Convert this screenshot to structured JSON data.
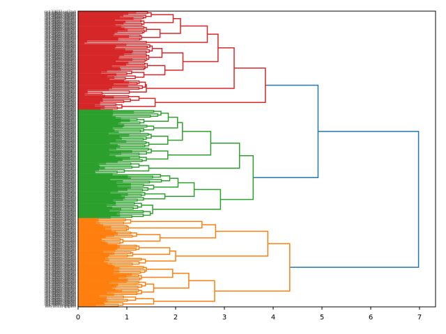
{
  "chart_data": {
    "type": "dendrogram",
    "orientation": "right",
    "title": "",
    "xlabel": "",
    "ylabel": "",
    "xlim": [
      0,
      7.33
    ],
    "xticks": [
      0,
      1,
      2,
      3,
      4,
      5,
      6,
      7
    ],
    "xtick_labels": [
      "0",
      "1",
      "2",
      "3",
      "4",
      "5",
      "6",
      "7"
    ],
    "grid": false,
    "colors": {
      "above_threshold": "#1f77b4",
      "cluster_red": "#d62728",
      "cluster_green": "#2ca02c",
      "cluster_orange": "#ff7f0e"
    },
    "first_leaf_label": "cord-336877-xxel3zwb",
    "last_leaf_label": "cord-105310-qjiqpavv",
    "leaf_count_estimate": 200,
    "tree": {
      "h": 6.98,
      "color": "above_threshold",
      "children": [
        {
          "h": 4.92,
          "color": "above_threshold",
          "children": [
            {
              "h": 3.84,
              "color": "cluster_red",
              "children": [
                {
                  "h": 3.2,
                  "color": "cluster_red",
                  "children": [
                    {
                      "h": 2.87,
                      "color": "cluster_red",
                      "children": [
                        {
                          "h": 2.65,
                          "color": "cluster_red",
                          "children": [
                            {
                              "h": 2.1,
                              "color": "cluster_red",
                              "children": [
                                {
                                  "h": 1.95,
                                  "color": "cluster_red",
                                  "children": [
                                    {
                                      "h": 1.5,
                                      "color": "cluster_red",
                                      "leaves": 5,
                                      "base": 1.25
                                    },
                                    {
                                      "h": 1.35,
                                      "color": "cluster_red",
                                      "leaves": 4,
                                      "base": 1.2
                                    }
                                  ]
                                },
                                {
                                  "h": 1.68,
                                  "color": "cluster_red",
                                  "children": [
                                    {
                                      "h": 1.4,
                                      "color": "cluster_red",
                                      "leaves": 5,
                                      "base": 1.18
                                    },
                                    {
                                      "h": 1.3,
                                      "color": "cluster_red",
                                      "leaves": 4,
                                      "base": 1.15
                                    }
                                  ]
                                }
                              ]
                            },
                            {
                              "h": 1.4,
                              "color": "cluster_red",
                              "leaves": 2,
                              "base": 0.18
                            }
                          ]
                        },
                        {
                          "h": 2.15,
                          "color": "cluster_red",
                          "children": [
                            {
                              "h": 1.72,
                              "color": "cluster_red",
                              "children": [
                                {
                                  "h": 1.52,
                                  "color": "cluster_red",
                                  "leaves": 6,
                                  "base": 1.3
                                },
                                {
                                  "h": 1.45,
                                  "color": "cluster_red",
                                  "leaves": 5,
                                  "base": 1.25
                                }
                              ]
                            },
                            {
                              "h": 1.78,
                              "color": "cluster_red",
                              "children": [
                                {
                                  "h": 1.42,
                                  "color": "cluster_red",
                                  "leaves": 5,
                                  "base": 1.22
                                },
                                {
                                  "h": 1.35,
                                  "color": "cluster_red",
                                  "leaves": 6,
                                  "base": 0.78
                                }
                              ]
                            }
                          ]
                        }
                      ]
                    },
                    {
                      "h": 1.4,
                      "color": "cluster_red",
                      "children": [
                        {
                          "h": 1.38,
                          "color": "cluster_red",
                          "leaves": 6,
                          "base": 1.1
                        },
                        {
                          "h": 1.05,
                          "color": "cluster_red",
                          "leaves": 3,
                          "base": 0.2
                        }
                      ]
                    }
                  ]
                },
                {
                  "h": 1.58,
                  "color": "cluster_red",
                  "children": [
                    {
                      "h": 1.25,
                      "color": "cluster_red",
                      "leaves": 5,
                      "base": 0.8
                    },
                    {
                      "h": 0.9,
                      "color": "cluster_red",
                      "leaves": 4,
                      "base": 0.6
                    }
                  ]
                }
              ]
            },
            {
              "h": 3.59,
              "color": "cluster_green",
              "children": [
                {
                  "h": 3.31,
                  "color": "cluster_green",
                  "children": [
                    {
                      "h": 2.72,
                      "color": "cluster_green",
                      "children": [
                        {
                          "h": 2.14,
                          "color": "cluster_green",
                          "children": [
                            {
                              "h": 2.04,
                              "color": "cluster_green",
                              "children": [
                                {
                                  "h": 1.85,
                                  "color": "cluster_green",
                                  "children": [
                                    {
                                      "h": 1.7,
                                      "color": "cluster_green",
                                      "leaves": 5,
                                      "base": 1.2
                                    },
                                    {
                                      "h": 1.35,
                                      "color": "cluster_green",
                                      "leaves": 4,
                                      "base": 1.1
                                    }
                                  ]
                                },
                                {
                                  "h": 1.55,
                                  "color": "cluster_green",
                                  "leaves": 5,
                                  "base": 0.95
                                }
                              ]
                            },
                            {
                              "h": 1.84,
                              "color": "cluster_green",
                              "children": [
                                {
                                  "h": 1.5,
                                  "color": "cluster_green",
                                  "leaves": 5,
                                  "base": 1.05
                                },
                                {
                                  "h": 1.45,
                                  "color": "cluster_green",
                                  "leaves": 4,
                                  "base": 1.12
                                }
                              ]
                            }
                          ]
                        },
                        {
                          "h": 1.84,
                          "color": "cluster_green",
                          "children": [
                            {
                              "h": 1.5,
                              "color": "cluster_green",
                              "leaves": 5,
                              "base": 1.12
                            },
                            {
                              "h": 1.4,
                              "color": "cluster_green",
                              "leaves": 4,
                              "base": 1.1
                            }
                          ]
                        }
                      ]
                    },
                    {
                      "h": 1.45,
                      "color": "cluster_green",
                      "children": [
                        {
                          "h": 1.25,
                          "color": "cluster_green",
                          "leaves": 4,
                          "base": 0.7
                        },
                        {
                          "h": 0.95,
                          "color": "cluster_green",
                          "leaves": 3,
                          "base": 0.6
                        }
                      ]
                    }
                  ]
                },
                {
                  "h": 2.92,
                  "color": "cluster_green",
                  "children": [
                    {
                      "h": 2.38,
                      "color": "cluster_green",
                      "children": [
                        {
                          "h": 2.05,
                          "color": "cluster_green",
                          "children": [
                            {
                              "h": 1.88,
                              "color": "cluster_green",
                              "leaves": 6,
                              "base": 1.15
                            },
                            {
                              "h": 1.55,
                              "color": "cluster_green",
                              "leaves": 5,
                              "base": 1.1
                            }
                          ]
                        },
                        {
                          "h": 1.78,
                          "color": "cluster_green",
                          "leaves": 6,
                          "base": 1.05
                        }
                      ]
                    },
                    {
                      "h": 1.53,
                      "color": "cluster_green",
                      "children": [
                        {
                          "h": 1.3,
                          "color": "cluster_green",
                          "leaves": 5,
                          "base": 0.95
                        },
                        {
                          "h": 1.48,
                          "color": "cluster_green",
                          "leaves": 5,
                          "base": 0.88
                        }
                      ]
                    }
                  ]
                }
              ]
            }
          ]
        },
        {
          "h": 4.34,
          "color": "cluster_orange",
          "children": [
            {
              "h": 3.89,
              "color": "cluster_orange",
              "children": [
                {
                  "h": 2.82,
                  "color": "cluster_orange",
                  "children": [
                    {
                      "h": 2.54,
                      "color": "cluster_orange",
                      "children": [
                        {
                          "h": 1.08,
                          "color": "cluster_orange",
                          "leaves": 4,
                          "base": 0.62
                        },
                        {
                          "h": 1.03,
                          "color": "cluster_orange",
                          "leaves": 4,
                          "base": 0.88
                        }
                      ]
                    },
                    {
                      "h": 1.68,
                      "color": "cluster_orange",
                      "children": [
                        {
                          "h": 1.2,
                          "color": "cluster_orange",
                          "leaves": 4,
                          "base": 0.95
                        },
                        {
                          "h": 0.92,
                          "color": "cluster_orange",
                          "leaves": 4,
                          "base": 0.8
                        }
                      ]
                    }
                  ]
                },
                {
                  "h": 2.0,
                  "color": "cluster_orange",
                  "children": [
                    {
                      "h": 1.88,
                      "color": "cluster_orange",
                      "children": [
                        {
                          "h": 1.25,
                          "color": "cluster_orange",
                          "leaves": 4,
                          "base": 0.85
                        },
                        {
                          "h": 1.12,
                          "color": "cluster_orange",
                          "leaves": 4,
                          "base": 0.88
                        }
                      ]
                    },
                    {
                      "h": 1.38,
                      "color": "cluster_orange",
                      "leaves": 5,
                      "base": 0.9
                    }
                  ]
                }
              ]
            },
            {
              "h": 2.8,
              "color": "cluster_orange",
              "children": [
                {
                  "h": 2.27,
                  "color": "cluster_orange",
                  "children": [
                    {
                      "h": 1.94,
                      "color": "cluster_orange",
                      "children": [
                        {
                          "h": 1.4,
                          "color": "cluster_orange",
                          "leaves": 5,
                          "base": 1.2
                        },
                        {
                          "h": 1.3,
                          "color": "cluster_orange",
                          "leaves": 4,
                          "base": 1.15
                        }
                      ]
                    },
                    {
                      "h": 1.55,
                      "color": "cluster_orange",
                      "children": [
                        {
                          "h": 1.38,
                          "color": "cluster_orange",
                          "leaves": 5,
                          "base": 1.05
                        },
                        {
                          "h": 1.3,
                          "color": "cluster_orange",
                          "leaves": 4,
                          "base": 1.0
                        }
                      ]
                    }
                  ]
                },
                {
                  "h": 1.55,
                  "color": "cluster_orange",
                  "children": [
                    {
                      "h": 1.18,
                      "color": "cluster_orange",
                      "leaves": 4,
                      "base": 0.75
                    },
                    {
                      "h": 0.92,
                      "color": "cluster_orange",
                      "leaves": 3,
                      "base": 0.6
                    }
                  ]
                }
              ]
            }
          ]
        }
      ]
    }
  }
}
